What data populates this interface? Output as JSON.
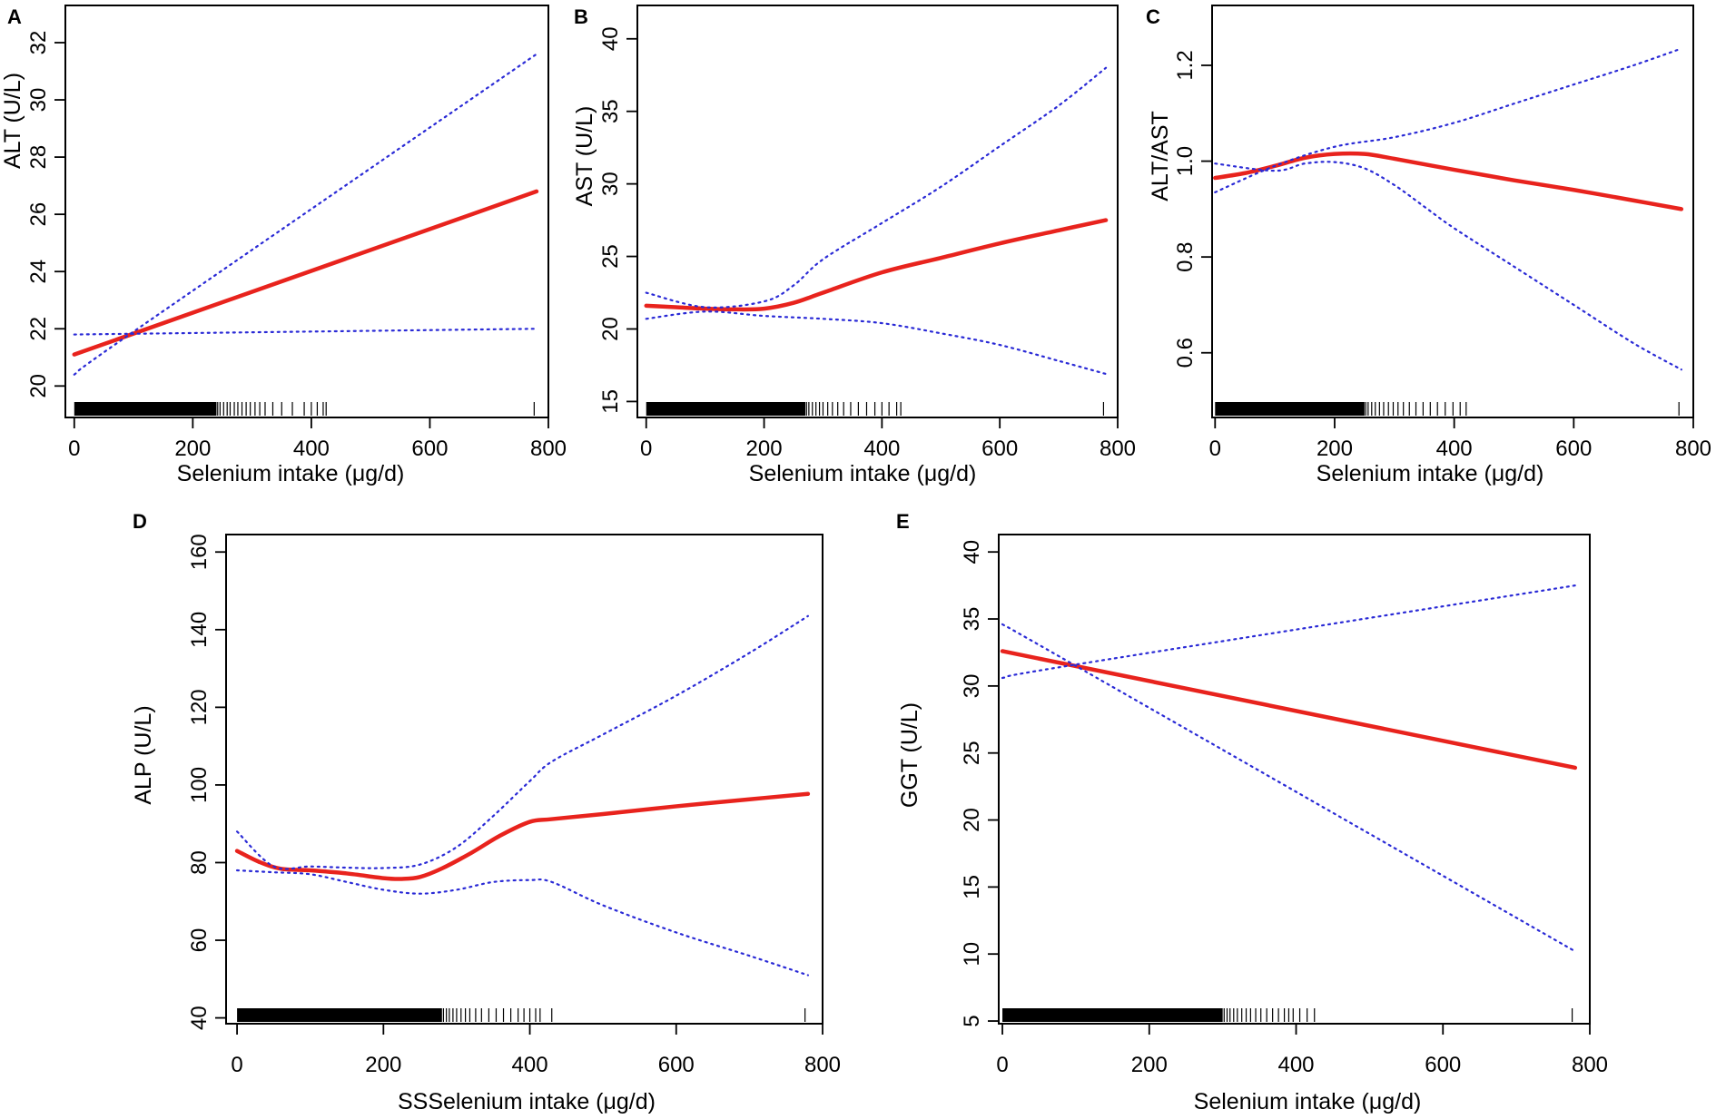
{
  "chart_data": [
    {
      "panel": "A",
      "type": "line",
      "xlabel": "Selenium intake (μg/d)",
      "ylabel": "ALT (U/L)",
      "xlim": [
        -15,
        800
      ],
      "ylim": [
        18.9,
        33.3
      ],
      "xticks": [
        0,
        200,
        400,
        600,
        800
      ],
      "yticks": [
        20,
        22,
        24,
        26,
        28,
        30,
        32
      ],
      "ytick_labels": [
        "20",
        "22",
        "24",
        "26",
        "28",
        "30",
        "32"
      ],
      "colors": {
        "fit": "#e8231d",
        "ci": "#2a2ad6",
        "rug": "#000000"
      },
      "series": [
        {
          "name": "fit",
          "x": [
            0,
            780
          ],
          "y": [
            21.1,
            26.8
          ]
        },
        {
          "name": "ci_upper",
          "x": [
            0,
            100,
            780
          ],
          "y": [
            20.4,
            21.9,
            31.6
          ]
        },
        {
          "name": "ci_lower",
          "x": [
            0,
            780
          ],
          "y": [
            21.8,
            22.0
          ]
        }
      ],
      "rug": {
        "dense": [
          0,
          240
        ],
        "sparse": [
          242,
          246,
          252,
          258,
          263,
          270,
          276,
          283,
          290,
          297,
          305,
          313,
          322,
          335,
          350,
          368,
          388,
          400,
          410,
          420,
          425,
          776
        ]
      }
    },
    {
      "panel": "B",
      "type": "line",
      "xlabel": "Selenium intake (μg/d)",
      "ylabel": "AST (U/L)",
      "xlim": [
        -15,
        800
      ],
      "ylim": [
        13.9,
        42.3
      ],
      "xticks": [
        0,
        200,
        400,
        600,
        800
      ],
      "yticks": [
        15,
        20,
        25,
        30,
        35,
        40
      ],
      "ytick_labels": [
        "15",
        "20",
        "25",
        "30",
        "35",
        "40"
      ],
      "colors": {
        "fit": "#e8231d",
        "ci": "#2a2ad6",
        "rug": "#000000"
      },
      "series": [
        {
          "name": "fit",
          "x": [
            0,
            50,
            100,
            150,
            200,
            250,
            300,
            400,
            500,
            600,
            700,
            780
          ],
          "y": [
            21.6,
            21.5,
            21.4,
            21.35,
            21.4,
            21.8,
            22.5,
            23.9,
            24.9,
            25.9,
            26.8,
            27.5
          ]
        },
        {
          "name": "ci_upper",
          "x": [
            0,
            100,
            200,
            250,
            300,
            400,
            500,
            600,
            700,
            780
          ],
          "y": [
            22.5,
            21.5,
            21.9,
            23.0,
            24.8,
            27.3,
            29.8,
            32.6,
            35.4,
            38.0
          ]
        },
        {
          "name": "ci_lower",
          "x": [
            0,
            100,
            200,
            300,
            400,
            500,
            600,
            700,
            780
          ],
          "y": [
            20.7,
            21.2,
            20.9,
            20.7,
            20.4,
            19.7,
            18.9,
            17.8,
            16.9
          ]
        }
      ],
      "rug": {
        "dense": [
          0,
          270
        ],
        "sparse": [
          272,
          276,
          282,
          288,
          294,
          300,
          308,
          316,
          325,
          335,
          347,
          360,
          374,
          388,
          400,
          412,
          425,
          432,
          776
        ]
      }
    },
    {
      "panel": "C",
      "type": "line",
      "xlabel": "Selenium intake (μg/d)",
      "ylabel": "ALT/AST",
      "xlim": [
        -5,
        800
      ],
      "ylim": [
        0.465,
        1.325
      ],
      "xticks": [
        0,
        200,
        400,
        600,
        800
      ],
      "yticks": [
        0.6,
        0.8,
        1.0,
        1.2
      ],
      "ytick_labels": [
        "0.6",
        "0.8",
        "1.0",
        "1.2"
      ],
      "colors": {
        "fit": "#e8231d",
        "ci": "#2a2ad6",
        "rug": "#000000"
      },
      "series": [
        {
          "name": "fit",
          "x": [
            0,
            50,
            100,
            150,
            200,
            250,
            300,
            400,
            500,
            600,
            700,
            780
          ],
          "y": [
            0.965,
            0.975,
            0.99,
            1.007,
            1.015,
            1.015,
            1.005,
            0.982,
            0.96,
            0.94,
            0.918,
            0.9
          ]
        },
        {
          "name": "ci_upper",
          "x": [
            0,
            100,
            200,
            300,
            400,
            500,
            600,
            700,
            780
          ],
          "y": [
            0.935,
            0.99,
            1.03,
            1.05,
            1.08,
            1.12,
            1.16,
            1.2,
            1.235
          ]
        },
        {
          "name": "ci_lower",
          "x": [
            0,
            100,
            150,
            200,
            250,
            300,
            350,
            400,
            500,
            600,
            700,
            780
          ],
          "y": [
            0.995,
            0.98,
            0.995,
            0.998,
            0.985,
            0.95,
            0.905,
            0.86,
            0.78,
            0.7,
            0.62,
            0.565
          ]
        }
      ],
      "rug": {
        "dense": [
          0,
          250
        ],
        "sparse": [
          252,
          256,
          262,
          268,
          275,
          282,
          290,
          298,
          306,
          315,
          325,
          336,
          348,
          360,
          372,
          385,
          398,
          410,
          420,
          776
        ]
      }
    },
    {
      "panel": "D",
      "type": "line",
      "xlabel": "SSSelenium intake (μg/d)",
      "ylabel": "ALP (U/L)",
      "xlim": [
        -15,
        800
      ],
      "ylim": [
        38.5,
        164.5
      ],
      "xticks": [
        0,
        200,
        400,
        600,
        800
      ],
      "yticks": [
        40,
        60,
        80,
        100,
        120,
        140,
        160
      ],
      "ytick_labels": [
        "40",
        "60",
        "80",
        "100",
        "120",
        "140",
        "160"
      ],
      "colors": {
        "fit": "#e8231d",
        "ci": "#2a2ad6",
        "rug": "#000000"
      },
      "series": [
        {
          "name": "fit",
          "x": [
            0,
            30,
            60,
            100,
            150,
            200,
            225,
            250,
            280,
            320,
            360,
            400,
            430,
            500,
            600,
            700,
            780
          ],
          "y": [
            83.0,
            80.2,
            78.4,
            78.0,
            77.2,
            76.0,
            75.8,
            76.3,
            78.5,
            82.5,
            87.0,
            90.5,
            91.2,
            92.5,
            94.5,
            96.3,
            97.7
          ]
        },
        {
          "name": "ci_upper",
          "x": [
            0,
            50,
            100,
            150,
            200,
            250,
            300,
            350,
            400,
            430,
            500,
            600,
            700,
            780
          ],
          "y": [
            88.0,
            79.0,
            79.0,
            78.7,
            78.6,
            79.5,
            84.0,
            92.0,
            101.0,
            106.0,
            113.0,
            123.0,
            134.0,
            143.5
          ]
        },
        {
          "name": "ci_lower",
          "x": [
            0,
            50,
            100,
            150,
            200,
            250,
            300,
            350,
            400,
            430,
            500,
            600,
            700,
            780
          ],
          "y": [
            78.0,
            77.5,
            77.0,
            75.0,
            73.0,
            72.0,
            73.0,
            75.0,
            75.5,
            75.0,
            69.0,
            62.0,
            56.0,
            51.0
          ]
        }
      ],
      "rug": {
        "dense": [
          0,
          280
        ],
        "sparse": [
          282,
          286,
          290,
          295,
          300,
          306,
          312,
          318,
          326,
          334,
          344,
          354,
          364,
          374,
          384,
          392,
          400,
          408,
          414,
          430,
          776
        ]
      }
    },
    {
      "panel": "E",
      "type": "line",
      "xlabel": "Selenium intake (μg/d)",
      "ylabel": "GGT (U/L)",
      "xlim": [
        -5,
        800
      ],
      "ylim": [
        4.8,
        41.3
      ],
      "xticks": [
        0,
        200,
        400,
        600,
        800
      ],
      "yticks": [
        5,
        10,
        15,
        20,
        25,
        30,
        35,
        40
      ],
      "ytick_labels": [
        "5",
        "10",
        "15",
        "20",
        "25",
        "30",
        "35",
        "40"
      ],
      "colors": {
        "fit": "#e8231d",
        "ci": "#2a2ad6",
        "rug": "#000000"
      },
      "series": [
        {
          "name": "fit",
          "x": [
            0,
            780
          ],
          "y": [
            32.6,
            23.9
          ]
        },
        {
          "name": "ci_upper",
          "x": [
            0,
            100,
            780
          ],
          "y": [
            30.6,
            31.6,
            37.5
          ]
        },
        {
          "name": "ci_lower",
          "x": [
            0,
            100,
            780
          ],
          "y": [
            34.6,
            31.5,
            10.2
          ]
        }
      ],
      "rug": {
        "dense": [
          0,
          300
        ],
        "sparse": [
          302,
          306,
          310,
          315,
          320,
          326,
          332,
          338,
          345,
          352,
          360,
          368,
          376,
          384,
          390,
          396,
          405,
          415,
          425,
          776
        ]
      }
    }
  ],
  "panels": {
    "A": {
      "letter": "A"
    },
    "B": {
      "letter": "B"
    },
    "C": {
      "letter": "C"
    },
    "D": {
      "letter": "D"
    },
    "E": {
      "letter": "E"
    }
  }
}
